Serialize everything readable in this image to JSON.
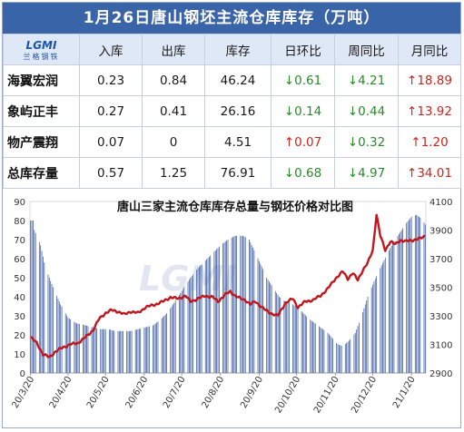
{
  "header": {
    "title": "1月26日唐山钢坯主流仓库库存（万吨）"
  },
  "logo": {
    "mark": "LGMI",
    "sub": "兰格钢铁"
  },
  "table": {
    "columns": [
      "入库",
      "出库",
      "库存",
      "日环比",
      "周同比",
      "月同比"
    ],
    "rows": [
      {
        "name": "海翼宏润",
        "in": "0.23",
        "out": "0.84",
        "stock": "46.24",
        "dod": {
          "dir": "down",
          "value": "0.61"
        },
        "wow": {
          "dir": "down",
          "value": "4.21"
        },
        "mom": {
          "dir": "up",
          "value": "18.89"
        }
      },
      {
        "name": "象屿正丰",
        "in": "0.27",
        "out": "0.41",
        "stock": "26.16",
        "dod": {
          "dir": "down",
          "value": "0.14"
        },
        "wow": {
          "dir": "down",
          "value": "0.44"
        },
        "mom": {
          "dir": "up",
          "value": "13.92"
        }
      },
      {
        "name": "物产震翔",
        "in": "0.07",
        "out": "0",
        "stock": "4.51",
        "dod": {
          "dir": "up",
          "value": "0.07"
        },
        "wow": {
          "dir": "down",
          "value": "0.32"
        },
        "mom": {
          "dir": "up",
          "value": "1.20"
        }
      },
      {
        "name": "总库存量",
        "in": "0.57",
        "out": "1.25",
        "stock": "76.91",
        "dod": {
          "dir": "down",
          "value": "0.68"
        },
        "wow": {
          "dir": "down",
          "value": "4.97"
        },
        "mom": {
          "dir": "up",
          "value": "34.01"
        }
      }
    ]
  },
  "colors": {
    "header_bg": "#3a64a8",
    "bar": "#3b5ba3",
    "line": "#c0161c",
    "up": "#d0231b",
    "down": "#2a8a2a"
  },
  "chart_data": {
    "type": "bar",
    "title": "唐山三家主流仓库库存总量与钢坯价格对比图",
    "watermark": "LGMI",
    "xlabel": "",
    "ylabel": "",
    "y2label": "",
    "ylim": [
      0,
      90
    ],
    "y_ticks": [
      0,
      10,
      20,
      30,
      40,
      50,
      60,
      70,
      80,
      90
    ],
    "y2lim": [
      2900,
      4100
    ],
    "y2_ticks": [
      2900,
      3100,
      3300,
      3500,
      3700,
      3900,
      4100
    ],
    "x_tick_labels": [
      "20/3/20",
      "20/4/20",
      "20/5/20",
      "20/6/20",
      "20/7/20",
      "20/8/20",
      "20/9/20",
      "20/10/20",
      "20/11/20",
      "20/12/20",
      "21/1/20"
    ],
    "x_ticks_index": [
      0,
      30,
      60,
      91,
      121,
      152,
      183,
      213,
      244,
      274,
      305
    ],
    "bar_series": {
      "name": "库存总量",
      "anchors": [
        [
          0,
          80
        ],
        [
          2,
          80
        ],
        [
          3,
          75
        ],
        [
          5,
          72
        ],
        [
          8,
          67
        ],
        [
          12,
          55
        ],
        [
          18,
          45
        ],
        [
          24,
          36
        ],
        [
          30,
          29
        ],
        [
          37,
          26
        ],
        [
          44,
          25
        ],
        [
          50,
          24
        ],
        [
          56,
          23
        ],
        [
          62,
          23
        ],
        [
          68,
          22
        ],
        [
          74,
          22
        ],
        [
          80,
          22
        ],
        [
          86,
          23
        ],
        [
          92,
          24
        ],
        [
          98,
          25
        ],
        [
          104,
          28
        ],
        [
          110,
          32
        ],
        [
          116,
          38
        ],
        [
          122,
          44
        ],
        [
          128,
          50
        ],
        [
          134,
          55
        ],
        [
          140,
          59
        ],
        [
          146,
          63
        ],
        [
          152,
          67
        ],
        [
          158,
          70
        ],
        [
          164,
          72
        ],
        [
          170,
          72
        ],
        [
          175,
          70
        ],
        [
          180,
          63
        ],
        [
          185,
          56
        ],
        [
          189,
          50
        ],
        [
          193,
          46
        ],
        [
          196,
          43
        ],
        [
          199,
          40
        ],
        [
          203,
          38
        ],
        [
          210,
          36
        ],
        [
          216,
          33
        ],
        [
          222,
          29
        ],
        [
          226,
          27
        ],
        [
          232,
          24
        ],
        [
          238,
          21
        ],
        [
          242,
          18
        ],
        [
          246,
          15
        ],
        [
          250,
          14
        ],
        [
          255,
          17
        ],
        [
          260,
          21
        ],
        [
          265,
          30
        ],
        [
          270,
          40
        ],
        [
          275,
          48
        ],
        [
          280,
          55
        ],
        [
          285,
          62
        ],
        [
          290,
          68
        ],
        [
          295,
          73
        ],
        [
          300,
          78
        ],
        [
          305,
          82
        ],
        [
          309,
          83
        ],
        [
          313,
          81
        ],
        [
          316,
          78
        ]
      ]
    },
    "line_series": {
      "name": "钢坯价格",
      "anchors": [
        [
          0,
          3150
        ],
        [
          5,
          3110
        ],
        [
          10,
          3030
        ],
        [
          15,
          3010
        ],
        [
          20,
          3050
        ],
        [
          26,
          3080
        ],
        [
          32,
          3100
        ],
        [
          38,
          3110
        ],
        [
          44,
          3150
        ],
        [
          50,
          3200
        ],
        [
          55,
          3280
        ],
        [
          60,
          3320
        ],
        [
          65,
          3340
        ],
        [
          70,
          3330
        ],
        [
          75,
          3310
        ],
        [
          80,
          3330
        ],
        [
          86,
          3320
        ],
        [
          92,
          3360
        ],
        [
          100,
          3380
        ],
        [
          106,
          3400
        ],
        [
          112,
          3430
        ],
        [
          118,
          3420
        ],
        [
          124,
          3440
        ],
        [
          128,
          3400
        ],
        [
          134,
          3420
        ],
        [
          140,
          3440
        ],
        [
          146,
          3430
        ],
        [
          150,
          3400
        ],
        [
          156,
          3450
        ],
        [
          160,
          3470
        ],
        [
          164,
          3440
        ],
        [
          168,
          3420
        ],
        [
          172,
          3410
        ],
        [
          176,
          3380
        ],
        [
          180,
          3400
        ],
        [
          184,
          3370
        ],
        [
          188,
          3340
        ],
        [
          192,
          3320
        ],
        [
          198,
          3300
        ],
        [
          204,
          3390
        ],
        [
          210,
          3420
        ],
        [
          214,
          3360
        ],
        [
          220,
          3400
        ],
        [
          226,
          3410
        ],
        [
          232,
          3440
        ],
        [
          238,
          3490
        ],
        [
          244,
          3560
        ],
        [
          250,
          3610
        ],
        [
          254,
          3560
        ],
        [
          258,
          3600
        ],
        [
          262,
          3550
        ],
        [
          266,
          3620
        ],
        [
          270,
          3670
        ],
        [
          274,
          3760
        ],
        [
          277,
          4010
        ],
        [
          280,
          3860
        ],
        [
          284,
          3760
        ],
        [
          288,
          3820
        ],
        [
          292,
          3800
        ],
        [
          296,
          3830
        ],
        [
          300,
          3820
        ],
        [
          306,
          3830
        ],
        [
          312,
          3840
        ],
        [
          316,
          3860
        ]
      ]
    }
  }
}
